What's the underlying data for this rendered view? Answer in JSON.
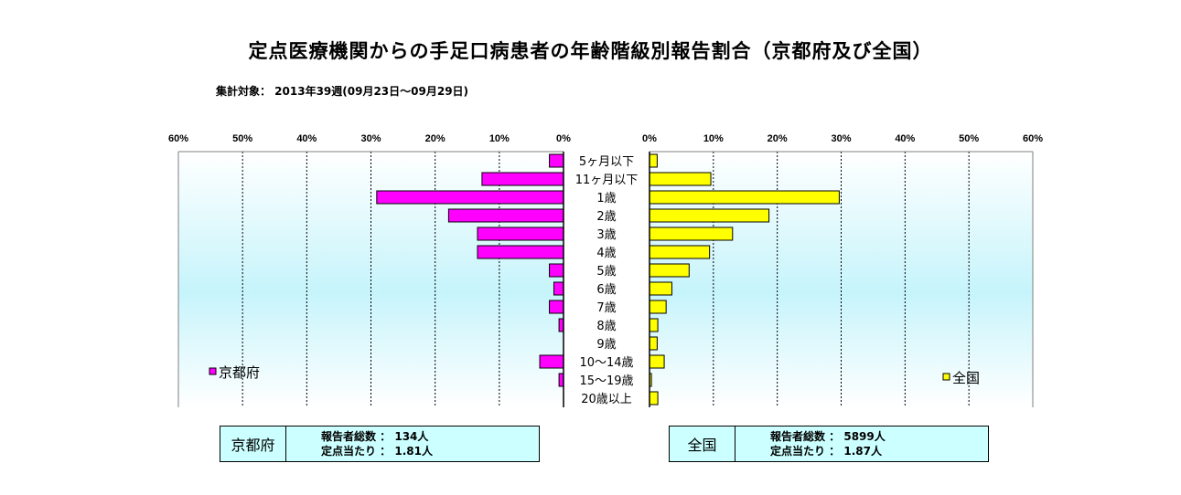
{
  "title": "定点医療機関からの手足口病患者の年齢階級別報告割合（京都府及び全国）",
  "subtitle": "集計対象： 2013年39週(09月23日～09月29日)",
  "chart_data": {
    "type": "bar",
    "orientation": "horizontal-butterfly",
    "categories": [
      "5ヶ月以下",
      "11ヶ月以下",
      "1歳",
      "2歳",
      "3歳",
      "4歳",
      "5歳",
      "6歳",
      "7歳",
      "8歳",
      "9歳",
      "10～14歳",
      "15～19歳",
      "20歳以上"
    ],
    "xlim": [
      0,
      60
    ],
    "x_ticks": [
      "0%",
      "10%",
      "20%",
      "30%",
      "40%",
      "50%",
      "60%"
    ],
    "grid": true,
    "series": [
      {
        "name": "京都府",
        "side": "left",
        "color": "#ff00ff",
        "values": [
          2.2,
          12.7,
          29.1,
          17.9,
          13.4,
          13.4,
          2.2,
          1.5,
          2.2,
          0.7,
          0.0,
          3.7,
          0.7,
          0.0
        ]
      },
      {
        "name": "全国",
        "side": "right",
        "color": "#ffff00",
        "values": [
          1.2,
          9.6,
          29.7,
          18.7,
          13.0,
          9.4,
          6.2,
          3.5,
          2.6,
          1.3,
          1.2,
          2.3,
          0.3,
          1.3
        ]
      }
    ],
    "legend_left": "京都府",
    "legend_right": "全国"
  },
  "summary": [
    {
      "name": "京都府",
      "reporters": "報告者総数 ： 134人",
      "per_site": "定点当たり ： 1.81人"
    },
    {
      "name": "全国",
      "reporters": "報告者総数 ： 5899人",
      "per_site": "定点当たり ： 1.87人"
    }
  ]
}
